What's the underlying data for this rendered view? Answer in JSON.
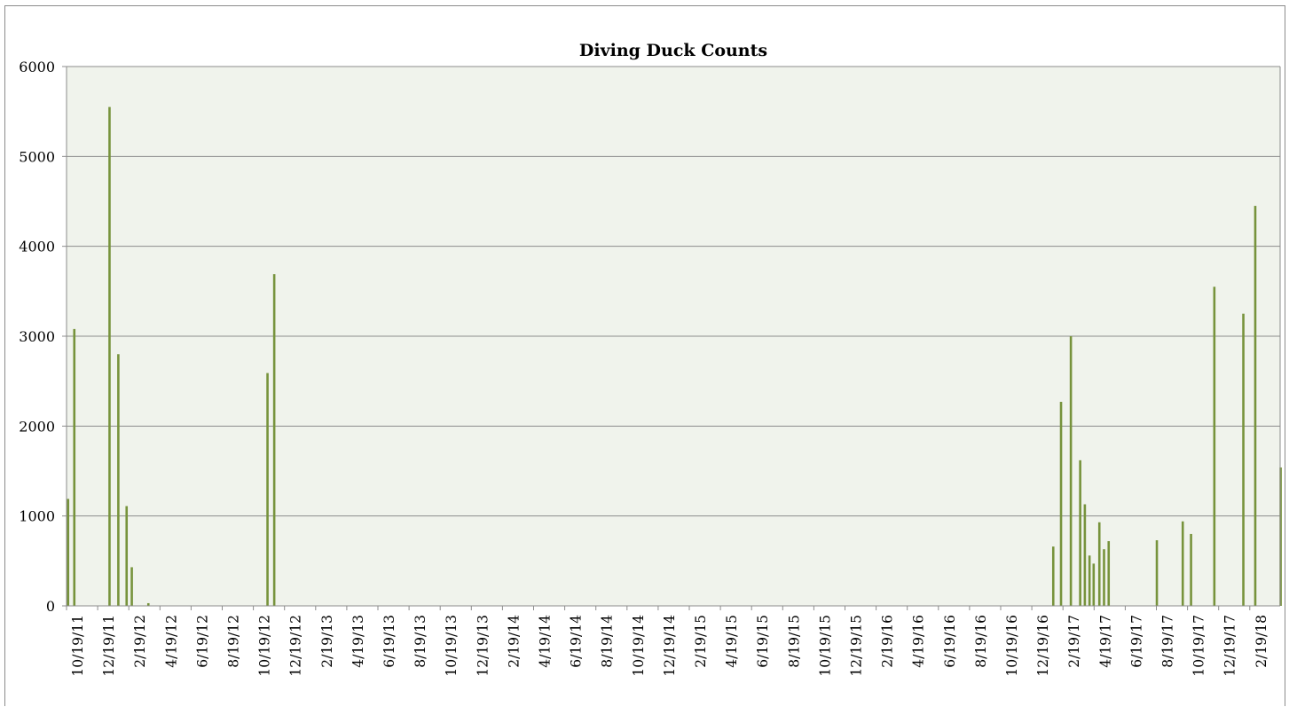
{
  "chart_data": {
    "type": "bar",
    "title": "Diving Duck Counts",
    "xlabel": "",
    "ylabel": "",
    "ylim": [
      0,
      6000
    ],
    "y_ticks": [
      "0",
      "1000",
      "2000",
      "3000",
      "4000",
      "5000",
      "6000"
    ],
    "x_range": [
      "2011-10-19",
      "2018-03-19"
    ],
    "x_tick_labels": [
      "10/19/11",
      "12/19/11",
      "2/19/12",
      "4/19/12",
      "6/19/12",
      "8/19/12",
      "10/19/12",
      "12/19/12",
      "2/19/13",
      "4/19/13",
      "6/19/13",
      "8/19/13",
      "10/19/13",
      "12/19/13",
      "2/19/14",
      "4/19/14",
      "6/19/14",
      "8/19/14",
      "10/19/14",
      "12/19/14",
      "2/19/15",
      "4/19/15",
      "6/19/15",
      "8/19/15",
      "10/19/15",
      "12/19/15",
      "2/19/16",
      "4/19/16",
      "6/19/16",
      "8/19/16",
      "10/19/16",
      "12/19/16",
      "2/19/17",
      "4/19/17",
      "6/19/17",
      "8/19/17",
      "10/19/17",
      "12/19/17",
      "2/19/18"
    ],
    "grid": true,
    "legend": "none",
    "colors": {
      "bar": "#77933c",
      "plot_bg": "#f0f3ec",
      "grid": "#8c8c8c"
    },
    "points": [
      {
        "date": "2011-10-22",
        "value": 1190
      },
      {
        "date": "2011-11-03",
        "value": 3080
      },
      {
        "date": "2012-01-10",
        "value": 5550
      },
      {
        "date": "2012-01-27",
        "value": 2800
      },
      {
        "date": "2012-02-12",
        "value": 1110
      },
      {
        "date": "2012-02-22",
        "value": 430
      },
      {
        "date": "2012-03-25",
        "value": 30
      },
      {
        "date": "2012-11-10",
        "value": 2590
      },
      {
        "date": "2012-11-23",
        "value": 3690
      },
      {
        "date": "2017-01-05",
        "value": 660
      },
      {
        "date": "2017-01-20",
        "value": 2270
      },
      {
        "date": "2017-02-08",
        "value": 3000
      },
      {
        "date": "2017-02-26",
        "value": 1620
      },
      {
        "date": "2017-03-07",
        "value": 1130
      },
      {
        "date": "2017-03-16",
        "value": 560
      },
      {
        "date": "2017-03-24",
        "value": 470
      },
      {
        "date": "2017-04-04",
        "value": 930
      },
      {
        "date": "2017-04-13",
        "value": 630
      },
      {
        "date": "2017-04-22",
        "value": 720
      },
      {
        "date": "2017-07-24",
        "value": 730
      },
      {
        "date": "2017-09-12",
        "value": 940
      },
      {
        "date": "2017-09-28",
        "value": 800
      },
      {
        "date": "2017-11-12",
        "value": 3550
      },
      {
        "date": "2018-01-07",
        "value": 3250
      },
      {
        "date": "2018-01-30",
        "value": 4450
      },
      {
        "date": "2018-03-20",
        "value": 1540
      }
    ]
  }
}
